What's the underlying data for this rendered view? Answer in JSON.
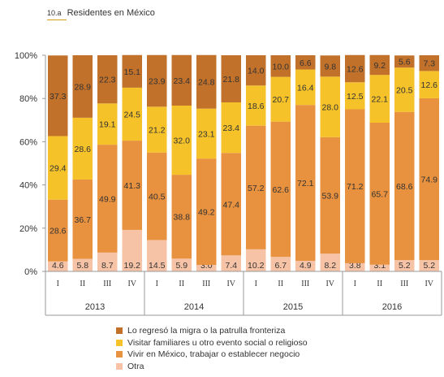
{
  "title_number": "10.a",
  "title_text": "Residentes en México",
  "chart_data": {
    "type": "bar",
    "stacked": true,
    "percent": true,
    "categories": [
      "I",
      "II",
      "III",
      "IV",
      "I",
      "II",
      "III",
      "IV",
      "I",
      "II",
      "III",
      "IV",
      "I",
      "II",
      "III",
      "IV"
    ],
    "groups": [
      {
        "label": "2013",
        "count": 4
      },
      {
        "label": "2014",
        "count": 4
      },
      {
        "label": "2015",
        "count": 4
      },
      {
        "label": "2016",
        "count": 4
      }
    ],
    "yticks": [
      "0%",
      "20%",
      "40%",
      "60%",
      "80%",
      "100%"
    ],
    "ylim": [
      0,
      100
    ],
    "series": [
      {
        "name": "Otra",
        "color": "#f6c3a6",
        "values": [
          4.6,
          5.8,
          8.7,
          19.2,
          14.5,
          5.9,
          3.0,
          7.4,
          10.2,
          6.7,
          4.9,
          8.2,
          3.8,
          3.1,
          5.2,
          5.2
        ]
      },
      {
        "name": "Vivir en México, trabajar o establecer negocio",
        "color": "#e8913e",
        "values": [
          28.6,
          36.7,
          49.9,
          41.3,
          40.5,
          38.8,
          49.2,
          47.4,
          57.2,
          62.6,
          72.1,
          53.9,
          71.2,
          65.7,
          68.6,
          74.9
        ]
      },
      {
        "name": "Visitar familiares u otro evento social o religioso",
        "color": "#f5c229",
        "values": [
          29.4,
          28.6,
          19.1,
          24.5,
          21.2,
          32.0,
          23.1,
          23.4,
          18.6,
          20.7,
          16.4,
          28.0,
          12.5,
          22.1,
          20.5,
          12.6
        ]
      },
      {
        "name": "Lo regresó la migra o la patrulla fronteriza",
        "color": "#c1712a",
        "values": [
          37.3,
          28.9,
          22.3,
          15.1,
          23.9,
          23.4,
          24.8,
          21.8,
          14.0,
          10.0,
          6.6,
          9.8,
          12.6,
          9.2,
          5.6,
          7.3
        ]
      }
    ],
    "legend_position": "bottom",
    "legend_order": [
      3,
      2,
      1,
      0
    ]
  }
}
